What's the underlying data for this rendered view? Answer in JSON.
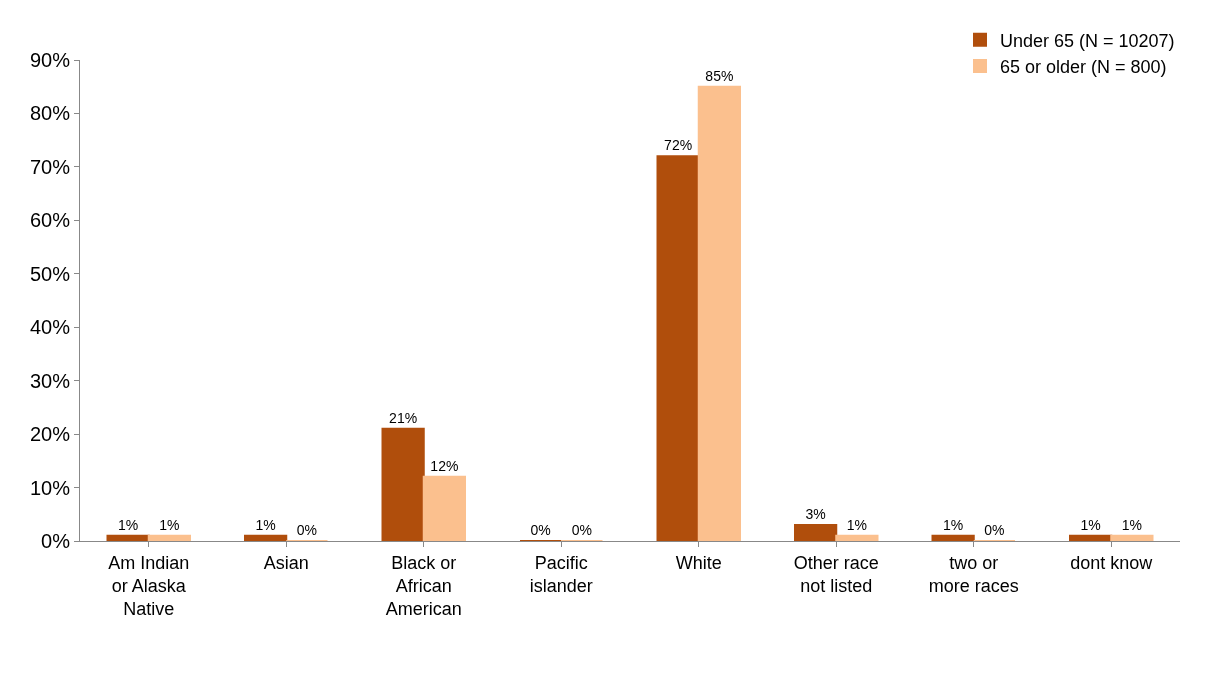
{
  "chart_data": {
    "type": "bar",
    "categories": [
      "Am Indian\nor Alaska\nNative",
      "Asian",
      "Black or\nAfrican\nAmerican",
      "Pacific\nislander",
      "White",
      "Other race\nnot listed",
      "two or\nmore races",
      "dont know"
    ],
    "series": [
      {
        "name": "Under 65 (N = 10207)",
        "color": "#b04e0c",
        "values": [
          1,
          1,
          21,
          0,
          72,
          3,
          1,
          1
        ],
        "value_labels": [
          "1%",
          "1%",
          "21%",
          "0%",
          "72%",
          "3%",
          "1%",
          "1%"
        ]
      },
      {
        "name": "65 or older (N = 800)",
        "color": "#fbc08e",
        "values": [
          1,
          0,
          12,
          0,
          85,
          1,
          0,
          1
        ],
        "value_labels": [
          "1%",
          "0%",
          "12%",
          "0%",
          "85%",
          "1%",
          "0%",
          "1%"
        ]
      }
    ],
    "ylim": [
      0,
      90
    ],
    "yticks": [
      {
        "value": 0,
        "label": "0%"
      },
      {
        "value": 10,
        "label": "10%"
      },
      {
        "value": 20,
        "label": "20%"
      },
      {
        "value": 30,
        "label": "30%"
      },
      {
        "value": 40,
        "label": "40%"
      },
      {
        "value": 50,
        "label": "50%"
      },
      {
        "value": 60,
        "label": "60%"
      },
      {
        "value": 70,
        "label": "70%"
      },
      {
        "value": 80,
        "label": "80%"
      },
      {
        "value": 90,
        "label": "90%"
      }
    ],
    "legend": "top right",
    "grid": false
  }
}
